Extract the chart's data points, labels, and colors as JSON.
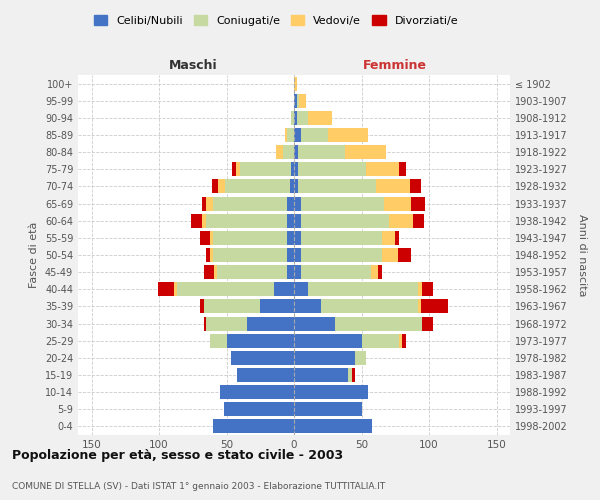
{
  "age_groups": [
    "0-4",
    "5-9",
    "10-14",
    "15-19",
    "20-24",
    "25-29",
    "30-34",
    "35-39",
    "40-44",
    "45-49",
    "50-54",
    "55-59",
    "60-64",
    "65-69",
    "70-74",
    "75-79",
    "80-84",
    "85-89",
    "90-94",
    "95-99",
    "100+"
  ],
  "birth_years": [
    "1998-2002",
    "1993-1997",
    "1988-1992",
    "1983-1987",
    "1978-1982",
    "1973-1977",
    "1968-1972",
    "1963-1967",
    "1958-1962",
    "1953-1957",
    "1948-1952",
    "1943-1947",
    "1938-1942",
    "1933-1937",
    "1928-1932",
    "1923-1927",
    "1918-1922",
    "1913-1917",
    "1908-1912",
    "1903-1907",
    "≤ 1902"
  ],
  "colors": {
    "celibi": "#4472c4",
    "coniugati": "#c5d9a0",
    "vedovi": "#ffcc66",
    "divorziati": "#cc0000"
  },
  "maschi": {
    "celibi": [
      60,
      52,
      55,
      42,
      47,
      50,
      35,
      25,
      15,
      5,
      5,
      5,
      5,
      5,
      3,
      2,
      0,
      0,
      0,
      0,
      0
    ],
    "coniugati": [
      0,
      0,
      0,
      0,
      0,
      12,
      30,
      42,
      72,
      52,
      55,
      55,
      60,
      55,
      48,
      38,
      8,
      5,
      2,
      0,
      0
    ],
    "vedovi": [
      0,
      0,
      0,
      0,
      0,
      0,
      0,
      0,
      2,
      2,
      2,
      2,
      3,
      5,
      5,
      3,
      5,
      2,
      0,
      0,
      0
    ],
    "divorziati": [
      0,
      0,
      0,
      0,
      0,
      0,
      2,
      3,
      12,
      8,
      3,
      8,
      8,
      3,
      5,
      3,
      0,
      0,
      0,
      0,
      0
    ]
  },
  "femmine": {
    "celibi": [
      58,
      50,
      55,
      40,
      45,
      50,
      30,
      20,
      10,
      5,
      5,
      5,
      5,
      5,
      3,
      3,
      3,
      5,
      2,
      2,
      0
    ],
    "coniugati": [
      0,
      0,
      0,
      3,
      8,
      28,
      65,
      72,
      82,
      52,
      60,
      60,
      65,
      62,
      58,
      50,
      35,
      20,
      8,
      2,
      0
    ],
    "vedovi": [
      0,
      0,
      0,
      0,
      0,
      2,
      0,
      2,
      3,
      5,
      12,
      10,
      18,
      20,
      25,
      25,
      30,
      30,
      18,
      5,
      2
    ],
    "divorziati": [
      0,
      0,
      0,
      2,
      0,
      3,
      8,
      20,
      8,
      3,
      10,
      3,
      8,
      10,
      8,
      5,
      0,
      0,
      0,
      0,
      0
    ]
  },
  "xlim": 160,
  "title": "Popolazione per età, sesso e stato civile - 2003",
  "subtitle": "COMUNE DI STELLA (SV) - Dati ISTAT 1° gennaio 2003 - Elaborazione TUTTITALIA.IT",
  "xlabel_maschi": "Maschi",
  "xlabel_femmine": "Femmine",
  "ylabel_left": "Fasce di età",
  "ylabel_right": "Anni di nascita",
  "legend_labels": [
    "Celibi/Nubili",
    "Coniugati/e",
    "Vedovi/e",
    "Divorziati/e"
  ],
  "bg_color": "#f0f0f0",
  "plot_bg": "#ffffff"
}
